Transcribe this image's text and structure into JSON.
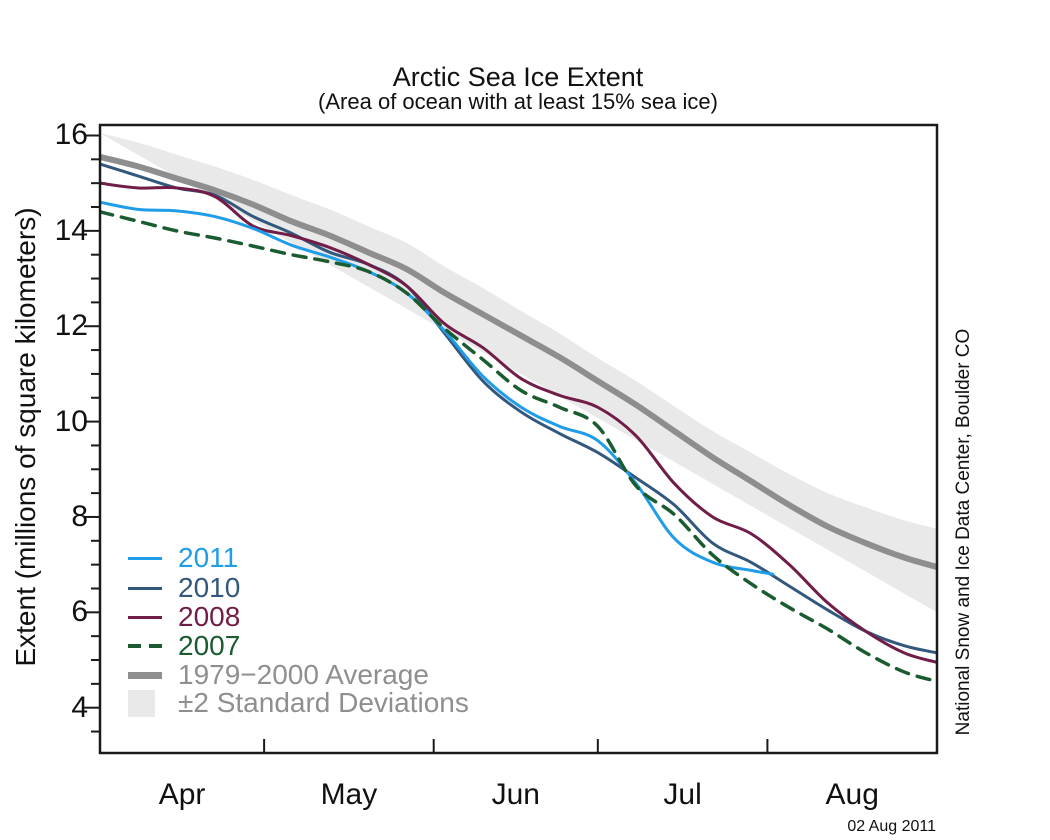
{
  "watermark": "National Snow and Ice Data Center, Boulder CO",
  "datestamp": "02 Aug 2011",
  "colors": {
    "c2011": "#1f9de8",
    "c2010": "#33587d",
    "c2008": "#701d48",
    "c2007": "#1a5c30",
    "average": "#8e8e8e",
    "band": "#e9e9e9",
    "axis": "#1a1a1a",
    "legend_gray_text": "#8f8f8f"
  },
  "chart_data": {
    "type": "line",
    "title": "Arctic Sea Ice Extent",
    "subtitle": "(Area of ocean with at least 15% sea ice)",
    "ylabel": "Extent (millions of square kilometers)",
    "xlabel": "",
    "ylim": [
      3.05,
      16.22
    ],
    "x_unit": "days since Apr 1",
    "xlim": [
      0,
      153
    ],
    "grid": false,
    "legend_position": "inside lower-left",
    "y_major_ticks": [
      16,
      14,
      12,
      10,
      8,
      6,
      4
    ],
    "y_minor_step": 0.5,
    "x_month_labels": [
      "Apr",
      "May",
      "Jun",
      "Jul",
      "Aug"
    ],
    "x_month_label_days": [
      15,
      45.5,
      76,
      106.5,
      137.5
    ],
    "x_tick_days": [
      30,
      61,
      91,
      122,
      153
    ],
    "band": {
      "name": "±2 Standard Deviations",
      "x": [
        0,
        7,
        14,
        21,
        28,
        35,
        42,
        49,
        56,
        63,
        70,
        77,
        84,
        91,
        98,
        105,
        112,
        119,
        126,
        133,
        140,
        147,
        153
      ],
      "top": [
        16.05,
        15.85,
        15.6,
        15.35,
        15.07,
        14.75,
        14.45,
        14.1,
        13.75,
        13.25,
        12.8,
        12.32,
        11.85,
        11.33,
        10.85,
        10.32,
        9.8,
        9.35,
        8.9,
        8.5,
        8.2,
        7.93,
        7.75
      ],
      "bottom": [
        14.55,
        14.4,
        14.2,
        14.0,
        13.75,
        13.48,
        13.25,
        12.95,
        12.65,
        12.2,
        11.77,
        11.32,
        10.85,
        10.3,
        9.75,
        9.15,
        8.53,
        7.95,
        7.4,
        6.9,
        6.52,
        6.2,
        6.0
      ]
    },
    "series": [
      {
        "name": "1979-2000 Average",
        "key": "average",
        "style": "solid",
        "width": 6,
        "x": [
          0,
          7,
          14,
          21,
          28,
          35,
          42,
          49,
          56,
          63,
          70,
          77,
          84,
          91,
          98,
          105,
          112,
          119,
          126,
          133,
          140,
          147,
          153
        ],
        "values": [
          15.55,
          15.35,
          15.1,
          14.85,
          14.55,
          14.2,
          13.9,
          13.55,
          13.2,
          12.7,
          12.25,
          11.8,
          11.35,
          10.85,
          10.35,
          9.8,
          9.25,
          8.75,
          8.25,
          7.8,
          7.45,
          7.15,
          6.95
        ]
      },
      {
        "name": "2010",
        "key": "c2010",
        "style": "solid",
        "width": 3,
        "x": [
          0,
          7,
          14,
          21,
          28,
          35,
          42,
          49,
          56,
          63,
          70,
          77,
          84,
          91,
          98,
          105,
          112,
          119,
          126,
          133,
          140,
          147,
          153
        ],
        "values": [
          15.4,
          15.15,
          14.9,
          14.75,
          14.3,
          13.95,
          13.55,
          13.3,
          12.85,
          11.85,
          10.85,
          10.2,
          9.75,
          9.35,
          8.82,
          8.25,
          7.45,
          7.05,
          6.55,
          6.05,
          5.6,
          5.3,
          5.15
        ]
      },
      {
        "name": "2008",
        "key": "c2008",
        "style": "solid",
        "width": 3,
        "x": [
          0,
          7,
          14,
          21,
          28,
          35,
          42,
          49,
          56,
          63,
          70,
          77,
          84,
          91,
          98,
          105,
          112,
          119,
          126,
          133,
          140,
          147,
          153
        ],
        "values": [
          15.0,
          14.9,
          14.9,
          14.72,
          14.1,
          13.9,
          13.65,
          13.3,
          12.85,
          12.05,
          11.55,
          10.9,
          10.55,
          10.3,
          9.7,
          8.7,
          8.0,
          7.65,
          7.0,
          6.2,
          5.6,
          5.15,
          4.95
        ]
      },
      {
        "name": "2011",
        "key": "c2011",
        "style": "solid",
        "width": 3,
        "x": [
          0,
          7,
          14,
          21,
          28,
          35,
          42,
          49,
          56,
          63,
          70,
          77,
          84,
          91,
          98,
          105,
          112,
          119,
          123
        ],
        "values": [
          14.6,
          14.45,
          14.42,
          14.3,
          14.05,
          13.7,
          13.45,
          13.15,
          12.7,
          11.9,
          10.95,
          10.3,
          9.9,
          9.6,
          8.7,
          7.55,
          7.05,
          6.88,
          6.8
        ]
      },
      {
        "name": "2007",
        "key": "c2007",
        "style": "dashed",
        "width": 3.5,
        "x": [
          0,
          7,
          14,
          21,
          28,
          35,
          42,
          49,
          56,
          63,
          70,
          77,
          84,
          91,
          98,
          105,
          112,
          119,
          126,
          133,
          140,
          147,
          153
        ],
        "values": [
          14.4,
          14.2,
          14.0,
          13.85,
          13.68,
          13.5,
          13.35,
          13.15,
          12.7,
          11.95,
          11.3,
          10.65,
          10.3,
          9.9,
          8.65,
          8.05,
          7.2,
          6.6,
          6.1,
          5.65,
          5.15,
          4.75,
          4.55
        ]
      }
    ]
  },
  "legend": {
    "items": [
      {
        "label": "2011",
        "color_key": "c2011",
        "swatch": "line"
      },
      {
        "label": "2010",
        "color_key": "c2010",
        "swatch": "line"
      },
      {
        "label": "2008",
        "color_key": "c2008",
        "swatch": "line"
      },
      {
        "label": "2007",
        "color_key": "c2007",
        "swatch": "dashed"
      },
      {
        "label": "1979−2000 Average",
        "color_key": "average",
        "swatch": "thick",
        "gray_text": true
      },
      {
        "label": "±2 Standard Deviations",
        "color_key": "band",
        "swatch": "box",
        "gray_text": true
      }
    ]
  }
}
